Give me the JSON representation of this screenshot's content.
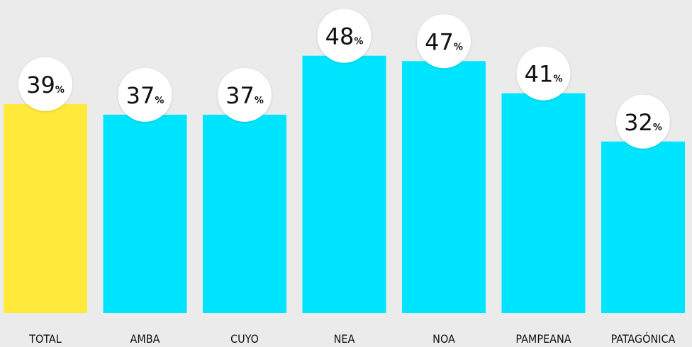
{
  "chart_data": {
    "type": "bar",
    "categories": [
      "TOTAL",
      "AMBA",
      "CUYO",
      "NEA",
      "NOA",
      "PAMPEANA",
      "PATAGÓNICA"
    ],
    "values": [
      39,
      37,
      37,
      48,
      47,
      41,
      32
    ],
    "value_labels": [
      "39%",
      "37%",
      "37%",
      "48%",
      "47%",
      "41%",
      "32%"
    ],
    "colors": [
      "#ffe93b",
      "#00e5ff",
      "#00e5ff",
      "#00e5ff",
      "#00e5ff",
      "#00e5ff",
      "#00e5ff"
    ],
    "ylim": [
      0,
      58.4
    ]
  }
}
